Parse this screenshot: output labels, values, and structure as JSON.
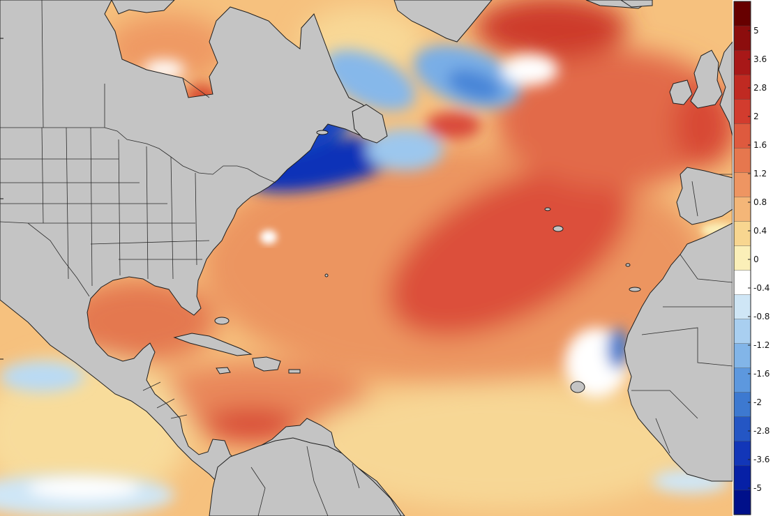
{
  "map": {
    "colorbar": {
      "labels": [
        "5",
        "3.6",
        "2.8",
        "2",
        "1.6",
        "1.2",
        "0.8",
        "0.4",
        "0",
        "-0.4",
        "-0.8",
        "-1.2",
        "-1.6",
        "-2",
        "-2.8",
        "-3.6",
        "-5"
      ],
      "colors": [
        "#670000",
        "#8c0d0d",
        "#a81818",
        "#c02a22",
        "#d23c2e",
        "#de5a3e",
        "#e6774e",
        "#ee9562",
        "#f4b678",
        "#f8d690",
        "#fbefb8",
        "#ffffff",
        "#cfe6f6",
        "#a9cff0",
        "#82b5e8",
        "#5d98de",
        "#3d79d0",
        "#2456c4",
        "#1236b8",
        "#0620a6",
        "#00108a"
      ],
      "colors_note_is_layout": false
    },
    "palette": {
      "land": "#c4c4c4",
      "coast": "#1e1e1e",
      "deep_red": "#d9493a",
      "red": "#e46a48",
      "orange": "#ef9a63",
      "light_orange": "#f6c17e",
      "yellow": "#f9e0a0",
      "white": "#ffffff",
      "light_blue": "#b9daf4",
      "blue": "#6fa6e4",
      "deep_blue": "#0b30b8"
    }
  }
}
